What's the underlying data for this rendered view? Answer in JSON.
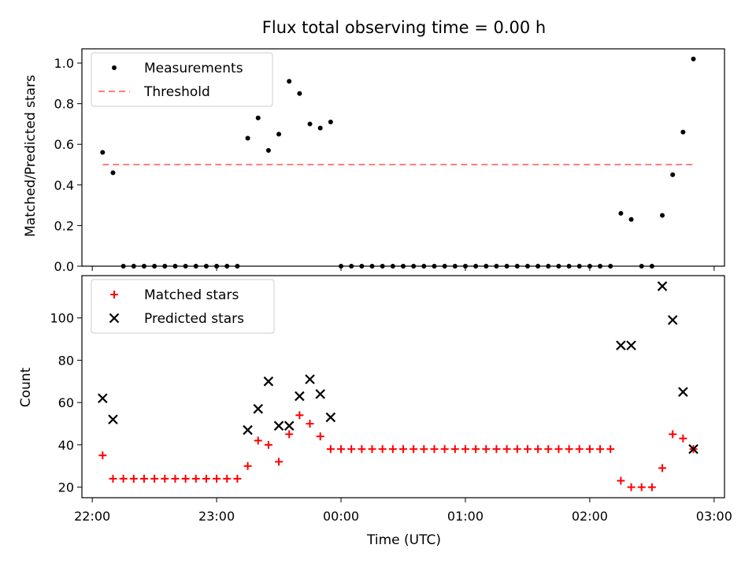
{
  "chart_data": [
    {
      "type": "scatter",
      "title": "Flux total observing time = 0.00 h",
      "xlabel": "",
      "ylabel": "Matched/Predicted stars",
      "xlim": [
        "21:55",
        "03:05"
      ],
      "ylim": [
        0,
        1.07
      ],
      "yticks": [
        "0.0",
        "0.2",
        "0.4",
        "0.6",
        "0.8",
        "1.0"
      ],
      "grid": false,
      "legend_position": "top-left",
      "series": [
        {
          "name": "Measurements",
          "marker": "dot",
          "color": "#000000",
          "points": [
            [
              "22:05",
              0.56
            ],
            [
              "22:10",
              0.46
            ],
            [
              "22:15",
              0.0
            ],
            [
              "22:20",
              0.0
            ],
            [
              "22:25",
              0.0
            ],
            [
              "22:30",
              0.0
            ],
            [
              "22:35",
              0.0
            ],
            [
              "22:40",
              0.0
            ],
            [
              "22:45",
              0.0
            ],
            [
              "22:50",
              0.0
            ],
            [
              "22:55",
              0.0
            ],
            [
              "23:00",
              0.0
            ],
            [
              "23:05",
              0.0
            ],
            [
              "23:10",
              0.0
            ],
            [
              "23:15",
              0.63
            ],
            [
              "23:20",
              0.73
            ],
            [
              "23:25",
              0.57
            ],
            [
              "23:30",
              0.65
            ],
            [
              "23:35",
              0.91
            ],
            [
              "23:40",
              0.85
            ],
            [
              "23:45",
              0.7
            ],
            [
              "23:50",
              0.68
            ],
            [
              "23:55",
              0.71
            ],
            [
              "00:00",
              0.0
            ],
            [
              "00:05",
              0.0
            ],
            [
              "00:10",
              0.0
            ],
            [
              "00:15",
              0.0
            ],
            [
              "00:20",
              0.0
            ],
            [
              "00:25",
              0.0
            ],
            [
              "00:30",
              0.0
            ],
            [
              "00:35",
              0.0
            ],
            [
              "00:40",
              0.0
            ],
            [
              "00:45",
              0.0
            ],
            [
              "00:50",
              0.0
            ],
            [
              "00:55",
              0.0
            ],
            [
              "01:00",
              0.0
            ],
            [
              "01:05",
              0.0
            ],
            [
              "01:10",
              0.0
            ],
            [
              "01:15",
              0.0
            ],
            [
              "01:20",
              0.0
            ],
            [
              "01:25",
              0.0
            ],
            [
              "01:30",
              0.0
            ],
            [
              "01:35",
              0.0
            ],
            [
              "01:40",
              0.0
            ],
            [
              "01:45",
              0.0
            ],
            [
              "01:50",
              0.0
            ],
            [
              "01:55",
              0.0
            ],
            [
              "02:00",
              0.0
            ],
            [
              "02:05",
              0.0
            ],
            [
              "02:10",
              0.0
            ],
            [
              "02:15",
              0.26
            ],
            [
              "02:20",
              0.23
            ],
            [
              "02:25",
              0.0
            ],
            [
              "02:30",
              0.0
            ],
            [
              "02:35",
              0.25
            ],
            [
              "02:40",
              0.45
            ],
            [
              "02:45",
              0.66
            ],
            [
              "02:50",
              1.02
            ]
          ]
        },
        {
          "name": "Threshold",
          "marker": "dashed-line",
          "color": "#ff7f7f",
          "points": [
            [
              "22:05",
              0.5
            ],
            [
              "02:50",
              0.5
            ]
          ]
        }
      ]
    },
    {
      "type": "scatter",
      "title": "",
      "xlabel": "Time (UTC)",
      "ylabel": "Count",
      "xlim": [
        "21:55",
        "03:05"
      ],
      "ylim": [
        15,
        120
      ],
      "xticks": [
        "22:00",
        "23:00",
        "00:00",
        "01:00",
        "02:00",
        "03:00"
      ],
      "yticks": [
        "20",
        "40",
        "60",
        "80",
        "100"
      ],
      "grid": false,
      "legend_position": "top-left",
      "series": [
        {
          "name": "Matched stars",
          "marker": "plus",
          "color": "#ff0000",
          "points": [
            [
              "22:05",
              35
            ],
            [
              "22:10",
              24
            ],
            [
              "22:15",
              24
            ],
            [
              "22:20",
              24
            ],
            [
              "22:25",
              24
            ],
            [
              "22:30",
              24
            ],
            [
              "22:35",
              24
            ],
            [
              "22:40",
              24
            ],
            [
              "22:45",
              24
            ],
            [
              "22:50",
              24
            ],
            [
              "22:55",
              24
            ],
            [
              "23:00",
              24
            ],
            [
              "23:05",
              24
            ],
            [
              "23:10",
              24
            ],
            [
              "23:15",
              30
            ],
            [
              "23:20",
              42
            ],
            [
              "23:25",
              40
            ],
            [
              "23:30",
              32
            ],
            [
              "23:35",
              45
            ],
            [
              "23:40",
              54
            ],
            [
              "23:45",
              50
            ],
            [
              "23:50",
              44
            ],
            [
              "23:55",
              38
            ],
            [
              "00:00",
              38
            ],
            [
              "00:05",
              38
            ],
            [
              "00:10",
              38
            ],
            [
              "00:15",
              38
            ],
            [
              "00:20",
              38
            ],
            [
              "00:25",
              38
            ],
            [
              "00:30",
              38
            ],
            [
              "00:35",
              38
            ],
            [
              "00:40",
              38
            ],
            [
              "00:45",
              38
            ],
            [
              "00:50",
              38
            ],
            [
              "00:55",
              38
            ],
            [
              "01:00",
              38
            ],
            [
              "01:05",
              38
            ],
            [
              "01:10",
              38
            ],
            [
              "01:15",
              38
            ],
            [
              "01:20",
              38
            ],
            [
              "01:25",
              38
            ],
            [
              "01:30",
              38
            ],
            [
              "01:35",
              38
            ],
            [
              "01:40",
              38
            ],
            [
              "01:45",
              38
            ],
            [
              "01:50",
              38
            ],
            [
              "01:55",
              38
            ],
            [
              "02:00",
              38
            ],
            [
              "02:05",
              38
            ],
            [
              "02:10",
              38
            ],
            [
              "02:15",
              23
            ],
            [
              "02:20",
              20
            ],
            [
              "02:25",
              20
            ],
            [
              "02:30",
              20
            ],
            [
              "02:35",
              29
            ],
            [
              "02:40",
              45
            ],
            [
              "02:45",
              43
            ],
            [
              "02:50",
              38
            ]
          ]
        },
        {
          "name": "Predicted stars",
          "marker": "x",
          "color": "#000000",
          "points": [
            [
              "22:05",
              62
            ],
            [
              "22:10",
              52
            ],
            [
              "23:15",
              47
            ],
            [
              "23:20",
              57
            ],
            [
              "23:25",
              70
            ],
            [
              "23:30",
              49
            ],
            [
              "23:35",
              49
            ],
            [
              "23:40",
              63
            ],
            [
              "23:45",
              71
            ],
            [
              "23:50",
              64
            ],
            [
              "23:55",
              53
            ],
            [
              "02:15",
              87
            ],
            [
              "02:20",
              87
            ],
            [
              "02:35",
              115
            ],
            [
              "02:40",
              99
            ],
            [
              "02:45",
              65
            ],
            [
              "02:50",
              38
            ]
          ]
        }
      ]
    }
  ]
}
